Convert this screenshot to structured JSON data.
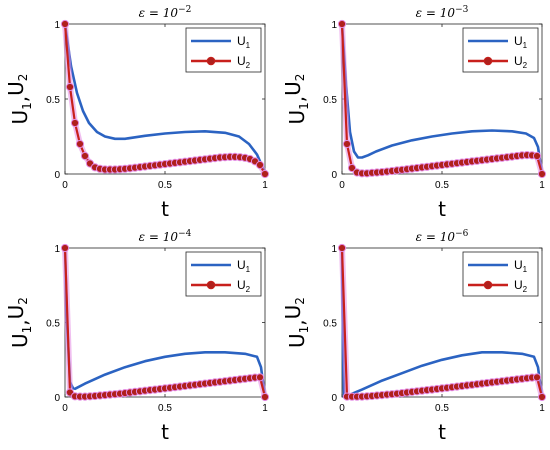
{
  "chart_data": [
    {
      "type": "line",
      "title": "ε = 10",
      "title_exponent": "−2",
      "xlabel": "t",
      "ylabel": "U",
      "ylabel_parts": [
        {
          "main": "U",
          "sub": "1"
        },
        {
          "main": ",",
          "sub": ""
        },
        {
          "main": "U",
          "sub": "2"
        }
      ],
      "xlim": [
        0,
        1
      ],
      "ylim": [
        0,
        1
      ],
      "xticks": [
        0,
        0.5,
        1
      ],
      "xtick_labels": [
        "0",
        "0.5",
        "1"
      ],
      "yticks": [
        0,
        0.5,
        1
      ],
      "ytick_labels": [
        "0",
        "0.5",
        "1"
      ],
      "legend_placement": "top-right",
      "series": [
        {
          "name": "U",
          "name_sub": "1",
          "color": "#2b63c2",
          "marker": "none",
          "x": [
            0,
            0.03,
            0.06,
            0.09,
            0.12,
            0.16,
            0.2,
            0.25,
            0.3,
            0.35,
            0.4,
            0.5,
            0.6,
            0.7,
            0.8,
            0.87,
            0.92,
            0.96,
            0.98,
            1.0
          ],
          "y": [
            1.0,
            0.72,
            0.54,
            0.42,
            0.34,
            0.28,
            0.25,
            0.235,
            0.235,
            0.245,
            0.255,
            0.27,
            0.28,
            0.285,
            0.275,
            0.25,
            0.2,
            0.13,
            0.07,
            0.0
          ]
        },
        {
          "name": "U",
          "name_sub": "2",
          "color": "#c8201c",
          "marker": "circle",
          "x": [
            0,
            0.025,
            0.05,
            0.075,
            0.1,
            0.125,
            0.15,
            0.175,
            0.2,
            0.225,
            0.25,
            0.275,
            0.3,
            0.325,
            0.35,
            0.375,
            0.4,
            0.425,
            0.45,
            0.475,
            0.5,
            0.525,
            0.55,
            0.575,
            0.6,
            0.625,
            0.65,
            0.675,
            0.7,
            0.725,
            0.75,
            0.775,
            0.8,
            0.825,
            0.85,
            0.875,
            0.9,
            0.925,
            0.95,
            0.975,
            1.0
          ],
          "y": [
            1.0,
            0.58,
            0.34,
            0.2,
            0.12,
            0.07,
            0.045,
            0.035,
            0.03,
            0.03,
            0.03,
            0.032,
            0.035,
            0.038,
            0.042,
            0.046,
            0.05,
            0.054,
            0.058,
            0.062,
            0.066,
            0.07,
            0.074,
            0.078,
            0.082,
            0.086,
            0.09,
            0.094,
            0.098,
            0.102,
            0.106,
            0.11,
            0.112,
            0.114,
            0.114,
            0.112,
            0.108,
            0.1,
            0.085,
            0.06,
            0.0
          ]
        }
      ]
    },
    {
      "type": "line",
      "title": "ε = 10",
      "title_exponent": "−3",
      "xlabel": "t",
      "ylabel": "U",
      "ylabel_parts": [
        {
          "main": "U",
          "sub": "1"
        },
        {
          "main": ",",
          "sub": ""
        },
        {
          "main": "U",
          "sub": "2"
        }
      ],
      "xlim": [
        0,
        1
      ],
      "ylim": [
        0,
        1
      ],
      "xticks": [
        0,
        0.5,
        1
      ],
      "xtick_labels": [
        "0",
        "0.5",
        "1"
      ],
      "yticks": [
        0,
        0.5,
        1
      ],
      "ytick_labels": [
        "0",
        "0.5",
        "1"
      ],
      "legend_placement": "top-right",
      "series": [
        {
          "name": "U",
          "name_sub": "1",
          "color": "#2b63c2",
          "marker": "none",
          "x": [
            0,
            0.02,
            0.04,
            0.06,
            0.08,
            0.1,
            0.13,
            0.17,
            0.25,
            0.35,
            0.45,
            0.55,
            0.65,
            0.75,
            0.85,
            0.92,
            0.96,
            0.98,
            1.0
          ],
          "y": [
            1.0,
            0.6,
            0.28,
            0.15,
            0.11,
            0.11,
            0.125,
            0.15,
            0.19,
            0.225,
            0.25,
            0.27,
            0.285,
            0.29,
            0.285,
            0.27,
            0.24,
            0.18,
            0.0
          ]
        },
        {
          "name": "U",
          "name_sub": "2",
          "color": "#c8201c",
          "marker": "circle",
          "x": [
            0,
            0.025,
            0.05,
            0.075,
            0.1,
            0.125,
            0.15,
            0.175,
            0.2,
            0.225,
            0.25,
            0.275,
            0.3,
            0.325,
            0.35,
            0.375,
            0.4,
            0.425,
            0.45,
            0.475,
            0.5,
            0.525,
            0.55,
            0.575,
            0.6,
            0.625,
            0.65,
            0.675,
            0.7,
            0.725,
            0.75,
            0.775,
            0.8,
            0.825,
            0.85,
            0.875,
            0.9,
            0.925,
            0.95,
            0.975,
            1.0
          ],
          "y": [
            1.0,
            0.2,
            0.04,
            0.01,
            0.005,
            0.005,
            0.008,
            0.01,
            0.013,
            0.016,
            0.02,
            0.024,
            0.028,
            0.032,
            0.036,
            0.04,
            0.044,
            0.048,
            0.052,
            0.056,
            0.06,
            0.064,
            0.068,
            0.072,
            0.076,
            0.08,
            0.084,
            0.088,
            0.092,
            0.096,
            0.1,
            0.104,
            0.108,
            0.112,
            0.116,
            0.12,
            0.124,
            0.126,
            0.125,
            0.12,
            0.0
          ]
        }
      ]
    },
    {
      "type": "line",
      "title": "ε = 10",
      "title_exponent": "−4",
      "xlabel": "t",
      "ylabel": "U",
      "ylabel_parts": [
        {
          "main": "U",
          "sub": "1"
        },
        {
          "main": ",",
          "sub": ""
        },
        {
          "main": "U",
          "sub": "2"
        }
      ],
      "xlim": [
        0,
        1
      ],
      "ylim": [
        0,
        1
      ],
      "xticks": [
        0,
        0.5,
        1
      ],
      "xtick_labels": [
        "0",
        "0.5",
        "1"
      ],
      "yticks": [
        0,
        0.5,
        1
      ],
      "ytick_labels": [
        "0",
        "0.5",
        "1"
      ],
      "legend_placement": "top-right",
      "series": [
        {
          "name": "U",
          "name_sub": "1",
          "color": "#2b63c2",
          "marker": "none",
          "x": [
            0,
            0.01,
            0.025,
            0.04,
            0.05,
            0.1,
            0.2,
            0.3,
            0.4,
            0.5,
            0.6,
            0.7,
            0.8,
            0.9,
            0.96,
            0.98,
            1.0
          ],
          "y": [
            1.0,
            0.5,
            0.1,
            0.06,
            0.055,
            0.09,
            0.15,
            0.2,
            0.24,
            0.27,
            0.29,
            0.3,
            0.3,
            0.29,
            0.27,
            0.2,
            0.0
          ]
        },
        {
          "name": "U",
          "name_sub": "2",
          "color": "#c8201c",
          "marker": "circle",
          "x": [
            0,
            0.025,
            0.05,
            0.075,
            0.1,
            0.125,
            0.15,
            0.175,
            0.2,
            0.225,
            0.25,
            0.275,
            0.3,
            0.325,
            0.35,
            0.375,
            0.4,
            0.425,
            0.45,
            0.475,
            0.5,
            0.525,
            0.55,
            0.575,
            0.6,
            0.625,
            0.65,
            0.675,
            0.7,
            0.725,
            0.75,
            0.775,
            0.8,
            0.825,
            0.85,
            0.875,
            0.9,
            0.925,
            0.95,
            0.975,
            1.0
          ],
          "y": [
            1.0,
            0.03,
            0.005,
            0.003,
            0.003,
            0.005,
            0.007,
            0.01,
            0.013,
            0.016,
            0.019,
            0.022,
            0.026,
            0.03,
            0.034,
            0.038,
            0.042,
            0.046,
            0.05,
            0.054,
            0.058,
            0.062,
            0.066,
            0.07,
            0.074,
            0.078,
            0.082,
            0.086,
            0.09,
            0.094,
            0.098,
            0.102,
            0.106,
            0.11,
            0.114,
            0.118,
            0.122,
            0.126,
            0.13,
            0.132,
            0.0
          ]
        }
      ]
    },
    {
      "type": "line",
      "title": "ε = 10",
      "title_exponent": "−6",
      "xlabel": "t",
      "ylabel": "U",
      "ylabel_parts": [
        {
          "main": "U",
          "sub": "1"
        },
        {
          "main": ",",
          "sub": ""
        },
        {
          "main": "U",
          "sub": "2"
        }
      ],
      "xlim": [
        0,
        1
      ],
      "ylim": [
        0,
        1
      ],
      "xticks": [
        0,
        0.5,
        1
      ],
      "xtick_labels": [
        "0",
        "0.5",
        "1"
      ],
      "yticks": [
        0,
        0.5,
        1
      ],
      "ytick_labels": [
        "0",
        "0.5",
        "1"
      ],
      "legend_placement": "top-right",
      "series": [
        {
          "name": "U",
          "name_sub": "1",
          "color": "#2b63c2",
          "marker": "none",
          "x": [
            0,
            0.005,
            0.01,
            0.03,
            0.1,
            0.2,
            0.3,
            0.4,
            0.5,
            0.6,
            0.7,
            0.8,
            0.9,
            0.96,
            0.98,
            1.0
          ],
          "y": [
            1.0,
            0.3,
            0.0,
            0.01,
            0.05,
            0.11,
            0.16,
            0.21,
            0.25,
            0.28,
            0.3,
            0.3,
            0.29,
            0.27,
            0.2,
            0.0
          ]
        },
        {
          "name": "U",
          "name_sub": "2",
          "color": "#c8201c",
          "marker": "circle",
          "x": [
            0,
            0.025,
            0.05,
            0.075,
            0.1,
            0.125,
            0.15,
            0.175,
            0.2,
            0.225,
            0.25,
            0.275,
            0.3,
            0.325,
            0.35,
            0.375,
            0.4,
            0.425,
            0.45,
            0.475,
            0.5,
            0.525,
            0.55,
            0.575,
            0.6,
            0.625,
            0.65,
            0.675,
            0.7,
            0.725,
            0.75,
            0.775,
            0.8,
            0.825,
            0.85,
            0.875,
            0.9,
            0.925,
            0.95,
            0.975,
            1.0
          ],
          "y": [
            1.0,
            0.003,
            0.002,
            0.002,
            0.003,
            0.005,
            0.007,
            0.01,
            0.013,
            0.016,
            0.019,
            0.022,
            0.026,
            0.03,
            0.034,
            0.038,
            0.042,
            0.046,
            0.05,
            0.054,
            0.058,
            0.062,
            0.066,
            0.07,
            0.074,
            0.078,
            0.082,
            0.086,
            0.09,
            0.094,
            0.098,
            0.102,
            0.106,
            0.11,
            0.114,
            0.118,
            0.122,
            0.126,
            0.13,
            0.132,
            0.0
          ]
        }
      ]
    }
  ],
  "colors": {
    "u1_line": "#2b63c2",
    "u2_line": "#c8201c",
    "u2_marker_fill": "#b0201c",
    "glow": "#e38be3"
  }
}
